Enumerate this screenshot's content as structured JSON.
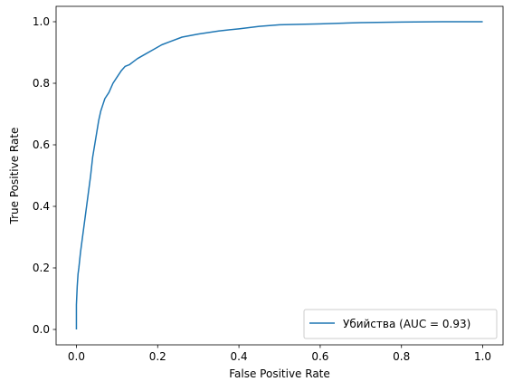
{
  "chart_data": {
    "type": "line",
    "xlabel": "False Positive Rate",
    "ylabel": "True Positive Rate",
    "xlim": [
      -0.05,
      1.05
    ],
    "ylim": [
      -0.05,
      1.05
    ],
    "xticks": [
      "0.0",
      "0.2",
      "0.4",
      "0.6",
      "0.8",
      "1.0"
    ],
    "yticks": [
      "0.0",
      "0.2",
      "0.4",
      "0.6",
      "0.8",
      "1.0"
    ],
    "grid": false,
    "legend_position": "lower right",
    "series": [
      {
        "name": "Убийства (AUC = 0.93)",
        "color": "#1f77b4",
        "x": [
          0.0,
          0.0,
          0.002,
          0.004,
          0.006,
          0.01,
          0.015,
          0.02,
          0.025,
          0.03,
          0.035,
          0.04,
          0.045,
          0.05,
          0.055,
          0.06,
          0.065,
          0.07,
          0.08,
          0.09,
          0.1,
          0.11,
          0.12,
          0.13,
          0.14,
          0.15,
          0.17,
          0.19,
          0.21,
          0.23,
          0.26,
          0.3,
          0.35,
          0.4,
          0.45,
          0.5,
          0.6,
          0.7,
          0.8,
          0.9,
          1.0
        ],
        "y": [
          0.0,
          0.08,
          0.14,
          0.18,
          0.2,
          0.25,
          0.3,
          0.35,
          0.4,
          0.45,
          0.5,
          0.56,
          0.6,
          0.64,
          0.68,
          0.71,
          0.73,
          0.75,
          0.77,
          0.8,
          0.82,
          0.84,
          0.855,
          0.86,
          0.87,
          0.88,
          0.895,
          0.91,
          0.925,
          0.935,
          0.95,
          0.96,
          0.97,
          0.977,
          0.985,
          0.99,
          0.993,
          0.997,
          0.999,
          1.0,
          1.0
        ]
      }
    ]
  }
}
